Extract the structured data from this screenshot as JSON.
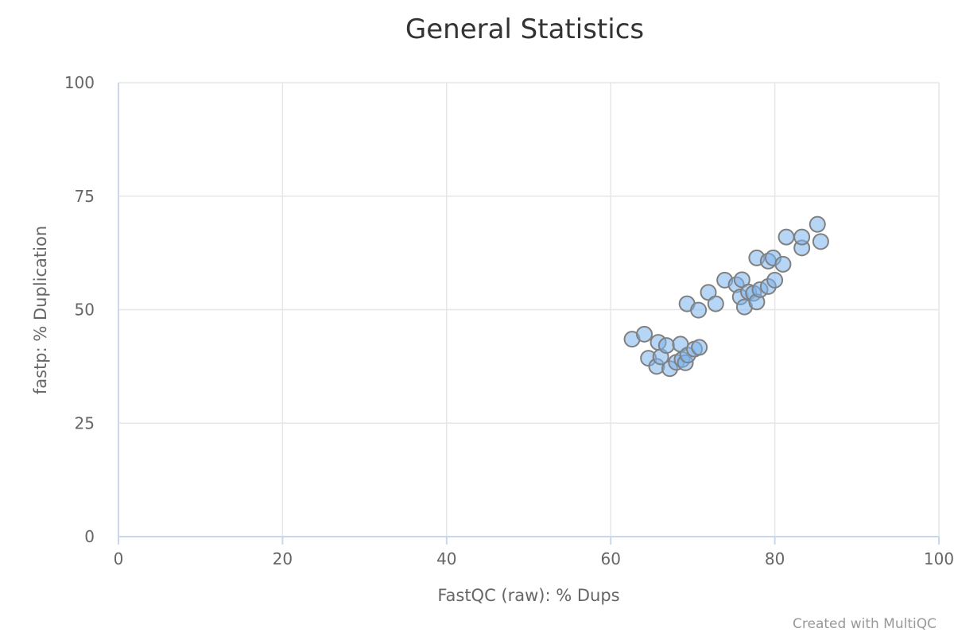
{
  "chart_data": {
    "type": "scatter",
    "title": "General Statistics",
    "xlabel": "FastQC (raw): % Dups",
    "ylabel": "fastp: % Duplication",
    "xlim": [
      0,
      100
    ],
    "ylim": [
      0,
      100
    ],
    "x_ticks": [
      "0",
      "20",
      "40",
      "60",
      "80",
      "100"
    ],
    "y_ticks": [
      "0",
      "25",
      "50",
      "75",
      "100"
    ],
    "grid": true,
    "legend": "none",
    "point_color": "#7cb5ec",
    "point_edge_color": "#808080",
    "credit": "Created with MultiQC",
    "points": [
      {
        "x": 62.6,
        "y": 43.5
      },
      {
        "x": 64.1,
        "y": 44.6
      },
      {
        "x": 64.6,
        "y": 39.3
      },
      {
        "x": 65.6,
        "y": 37.5
      },
      {
        "x": 65.8,
        "y": 42.8
      },
      {
        "x": 66.1,
        "y": 39.6
      },
      {
        "x": 66.8,
        "y": 42.1
      },
      {
        "x": 67.2,
        "y": 37.0
      },
      {
        "x": 68.0,
        "y": 38.4
      },
      {
        "x": 68.5,
        "y": 42.4
      },
      {
        "x": 68.7,
        "y": 39.0
      },
      {
        "x": 69.1,
        "y": 38.3
      },
      {
        "x": 69.4,
        "y": 40.0
      },
      {
        "x": 70.2,
        "y": 41.3
      },
      {
        "x": 70.8,
        "y": 41.7
      },
      {
        "x": 69.3,
        "y": 51.3
      },
      {
        "x": 70.7,
        "y": 49.9
      },
      {
        "x": 71.9,
        "y": 53.8
      },
      {
        "x": 72.8,
        "y": 51.3
      },
      {
        "x": 73.9,
        "y": 56.5
      },
      {
        "x": 75.3,
        "y": 55.5
      },
      {
        "x": 75.8,
        "y": 52.8
      },
      {
        "x": 76.0,
        "y": 56.6
      },
      {
        "x": 76.3,
        "y": 50.6
      },
      {
        "x": 76.8,
        "y": 53.9
      },
      {
        "x": 77.4,
        "y": 53.6
      },
      {
        "x": 77.8,
        "y": 51.7
      },
      {
        "x": 78.2,
        "y": 54.4
      },
      {
        "x": 79.2,
        "y": 55.1
      },
      {
        "x": 77.8,
        "y": 61.4
      },
      {
        "x": 79.2,
        "y": 60.7
      },
      {
        "x": 79.8,
        "y": 61.4
      },
      {
        "x": 80.0,
        "y": 56.5
      },
      {
        "x": 81.0,
        "y": 60.0
      },
      {
        "x": 81.4,
        "y": 66.0
      },
      {
        "x": 83.3,
        "y": 63.6
      },
      {
        "x": 83.3,
        "y": 66.0
      },
      {
        "x": 85.2,
        "y": 68.8
      },
      {
        "x": 85.6,
        "y": 65.0
      }
    ]
  }
}
